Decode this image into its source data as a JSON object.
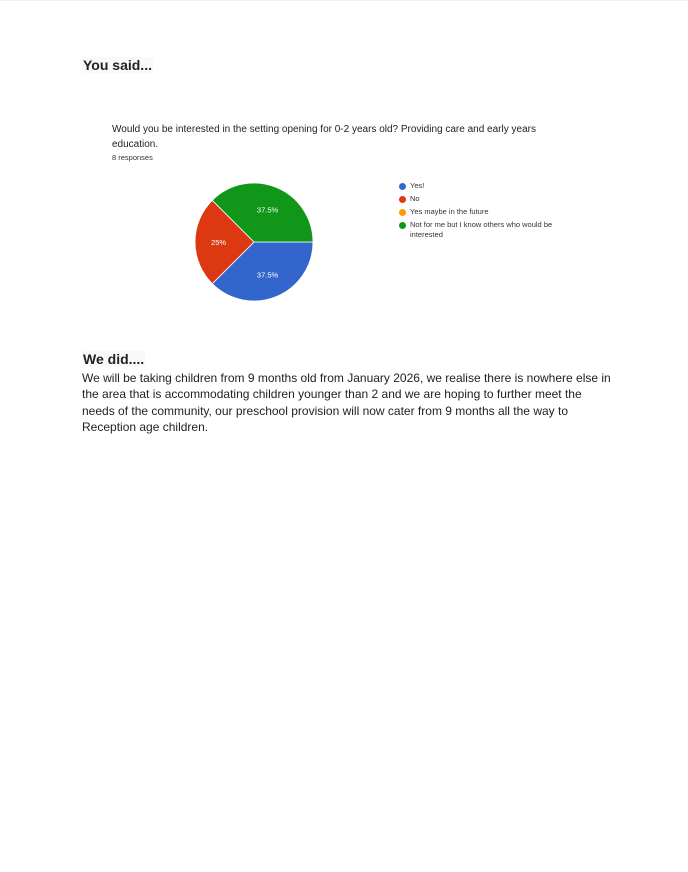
{
  "headings": {
    "you_said": "You said...",
    "we_did": "We did...."
  },
  "chart_data": {
    "type": "pie",
    "title": "Would you be interested in the setting opening for 0-2 years old? Providing care and early years education.",
    "subtitle": "8 responses",
    "categories": [
      "Yes!",
      "No",
      "Yes maybe in the future",
      "Not for me but I know others who would be interested"
    ],
    "values": [
      37.5,
      25,
      0,
      37.5
    ],
    "data_labels": [
      "37.5%",
      "25%",
      "",
      "37.5%"
    ],
    "colors": [
      "#3366cc",
      "#dc3912",
      "#ff9900",
      "#109618"
    ],
    "legend": "right"
  },
  "we_did_text": "We will be taking children from 9 months old from January 2026, we realise there is nowhere else in the area that is accommodating children younger than 2 and we are hoping to further meet the needs of the community, our preschool provision will now cater from 9 months all the way to Reception age children."
}
